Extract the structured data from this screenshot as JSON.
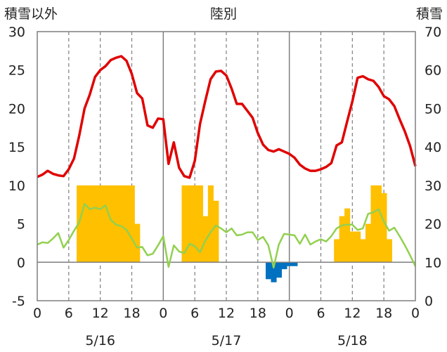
{
  "chart_data": {
    "type": "bar+line",
    "title": "陸別",
    "left_axis_label": "積雪以外",
    "right_axis_label": "積雪",
    "left_ylim": [
      -5,
      30
    ],
    "left_ticks": [
      -5,
      0,
      5,
      10,
      15,
      20,
      25,
      30
    ],
    "right_ylim": [
      0,
      70
    ],
    "right_ticks": [
      0,
      10,
      20,
      30,
      40,
      50,
      60,
      70
    ],
    "x_range_hours": [
      0,
      72
    ],
    "x_ticks": [
      "0",
      "6",
      "12",
      "18",
      "0",
      "6",
      "12",
      "18",
      "0",
      "6",
      "12",
      "18",
      "0"
    ],
    "date_labels": [
      "5/16",
      "5/17",
      "5/18"
    ],
    "grid": "dashed vertical every 6 hours, solid vertical at day boundaries",
    "series": [
      {
        "kind": "bar",
        "color": "#ffc000",
        "negative_color": "#0070c0",
        "values": [
          0,
          0,
          0,
          0,
          0,
          0,
          0,
          10,
          10,
          10,
          10,
          10,
          10,
          10,
          10,
          10,
          10,
          10,
          5,
          0,
          0,
          0,
          0,
          0,
          0,
          0,
          0,
          10,
          10,
          10,
          10,
          6,
          10,
          8,
          0,
          0,
          0,
          0,
          0,
          0,
          0,
          0,
          0,
          -2.2,
          -2.6,
          -2.0,
          -0.9,
          -0.5,
          -0.5,
          0,
          0,
          0,
          0,
          0,
          0,
          0,
          3,
          6,
          7,
          4,
          4,
          3,
          5,
          10,
          10,
          9,
          3,
          0,
          0,
          0,
          0,
          0
        ]
      },
      {
        "kind": "line",
        "color": "#e00000",
        "axis": "left",
        "values": [
          11.1,
          11.4,
          11.9,
          11.5,
          11.3,
          11.2,
          12.1,
          13.5,
          16.5,
          20.0,
          21.8,
          24.1,
          25.0,
          25.5,
          26.3,
          26.6,
          26.8,
          26.2,
          24.5,
          22.0,
          21.3,
          17.8,
          17.5,
          18.7,
          18.6,
          12.8,
          15.6,
          12.3,
          11.2,
          11.0,
          13.2,
          18.0,
          21.0,
          23.8,
          24.8,
          24.9,
          24.3,
          22.6,
          20.6,
          20.6,
          19.7,
          18.8,
          16.8,
          15.3,
          14.6,
          14.4,
          14.7,
          14.4,
          14.1,
          13.6,
          12.7,
          12.2,
          11.9,
          11.9,
          12.1,
          12.4,
          12.9,
          15.2,
          15.6,
          18.3,
          20.9,
          24.0,
          24.2,
          23.8,
          23.6,
          22.8,
          21.6,
          21.2,
          20.3,
          18.6,
          17.0,
          15.1,
          12.5
        ]
      },
      {
        "kind": "line",
        "color": "#92d050",
        "axis": "left",
        "values": [
          2.3,
          2.6,
          2.5,
          3.1,
          3.8,
          1.9,
          2.9,
          4.1,
          5.2,
          7.6,
          6.9,
          7.1,
          6.9,
          7.4,
          5.5,
          4.9,
          4.7,
          4.2,
          3.1,
          1.9,
          2.0,
          0.9,
          1.1,
          2.2,
          3.4,
          -0.6,
          2.2,
          1.4,
          1.2,
          2.4,
          2.1,
          1.3,
          2.8,
          3.9,
          4.8,
          4.4,
          3.9,
          4.4,
          3.5,
          3.6,
          3.9,
          3.9,
          2.9,
          3.3,
          2.2,
          -0.7,
          2.3,
          3.7,
          3.6,
          3.5,
          2.4,
          3.6,
          2.3,
          2.7,
          3.0,
          2.7,
          3.4,
          4.4,
          4.8,
          4.9,
          4.9,
          4.2,
          4.4,
          6.3,
          6.5,
          6.9,
          5.3,
          4.1,
          4.5,
          3.4,
          2.2,
          0.9,
          -0.5
        ]
      }
    ]
  }
}
